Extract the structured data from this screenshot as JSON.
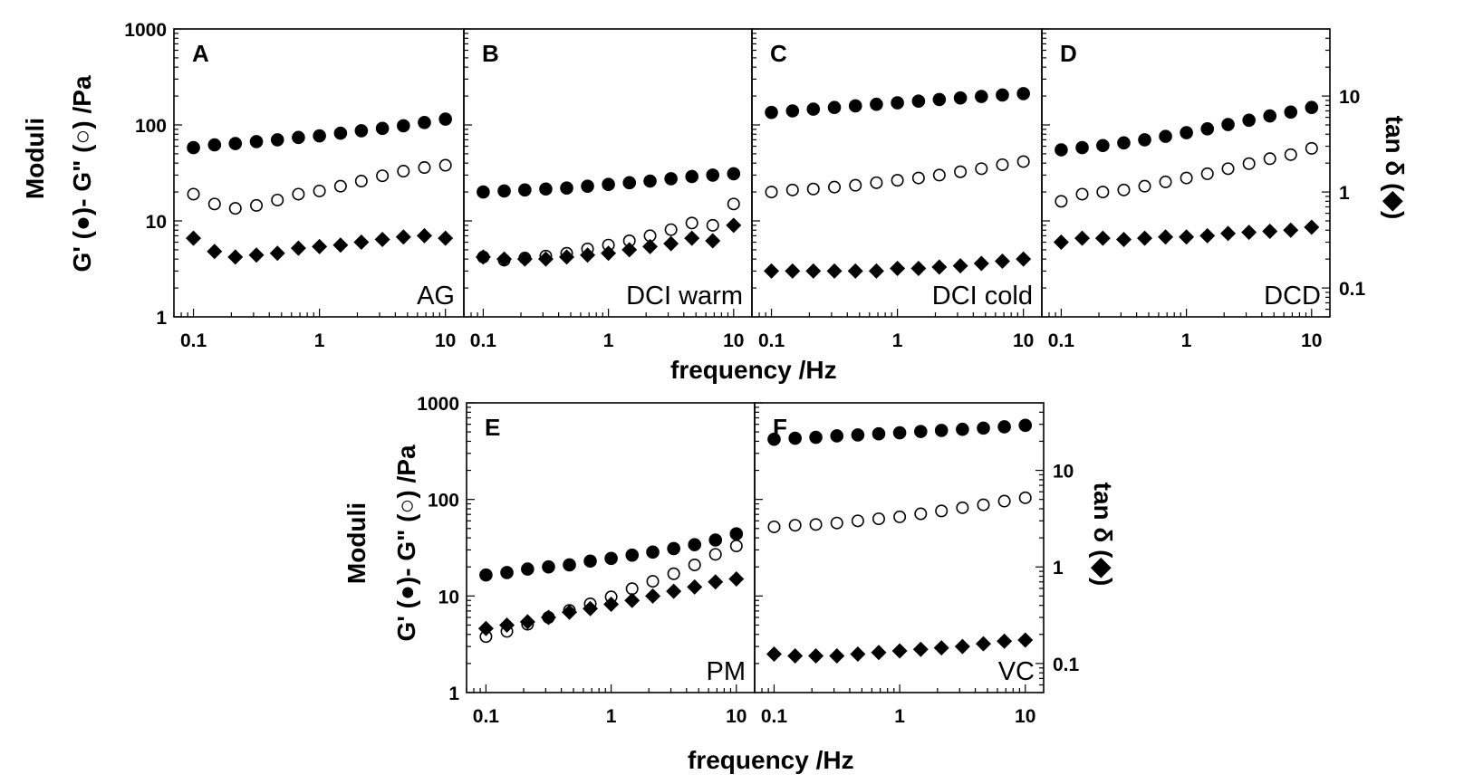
{
  "chart_data": {
    "type": "scatter",
    "y_label_line1": "Moduli",
    "y_label_line2": "G' (●)- G\" (○) /Pa",
    "right_label": "tan δ (◆)",
    "x_label": "frequency /Hz",
    "x_scale": "log",
    "xlim": [
      0.07,
      14
    ],
    "left_ylim": [
      1,
      1000
    ],
    "right_ylim": [
      0.05,
      50
    ],
    "x_ticks": [
      "0.1",
      "1",
      "10"
    ],
    "left_ticks": [
      "1",
      "10",
      "100",
      "1000"
    ],
    "right_ticks_top": [
      "0.1",
      "1",
      "10"
    ],
    "right_ticks_bottom": [
      "0.1",
      "1",
      "10"
    ],
    "frequencies": [
      0.1,
      0.147,
      0.215,
      0.316,
      0.464,
      0.681,
      1.0,
      1.47,
      2.15,
      3.16,
      4.64,
      6.81,
      10.0
    ],
    "panels": [
      {
        "id": "A",
        "sample": "AG",
        "G_prime": [
          58,
          62,
          64,
          67,
          70,
          74,
          77,
          82,
          87,
          92,
          98,
          106,
          115
        ],
        "G_double_prime": [
          19,
          15,
          13.5,
          14.5,
          16.5,
          19,
          20.5,
          23,
          26,
          29.5,
          33,
          36,
          38
        ],
        "tan_delta": [
          0.33,
          0.24,
          0.21,
          0.22,
          0.23,
          0.26,
          0.27,
          0.28,
          0.3,
          0.32,
          0.34,
          0.35,
          0.33
        ]
      },
      {
        "id": "B",
        "sample": "DCI warm",
        "G_prime": [
          20,
          20.5,
          21,
          21.5,
          22,
          23,
          24,
          25,
          26,
          27.5,
          29,
          30,
          31
        ],
        "G_double_prime": [
          4.2,
          3.9,
          4.1,
          4.3,
          4.6,
          5.1,
          5.6,
          6.2,
          7,
          8.1,
          9.5,
          9,
          15
        ],
        "tan_delta": [
          0.21,
          0.2,
          0.2,
          0.2,
          0.21,
          0.22,
          0.23,
          0.25,
          0.27,
          0.29,
          0.33,
          0.31,
          0.45
        ]
      },
      {
        "id": "C",
        "sample": "DCI cold",
        "G_prime": [
          135,
          140,
          146,
          152,
          158,
          164,
          170,
          177,
          184,
          191,
          198,
          205,
          212
        ],
        "G_double_prime": [
          20,
          21,
          21.5,
          22.5,
          23.5,
          25,
          26.5,
          28,
          30,
          32.5,
          35,
          38.5,
          41.5
        ],
        "tan_delta": [
          0.15,
          0.15,
          0.15,
          0.15,
          0.15,
          0.15,
          0.16,
          0.16,
          0.165,
          0.17,
          0.18,
          0.19,
          0.2
        ]
      },
      {
        "id": "D",
        "sample": "DCD",
        "G_prime": [
          55,
          58,
          61,
          65,
          70,
          76,
          83,
          91,
          101,
          112,
          124,
          136,
          152
        ],
        "G_double_prime": [
          16,
          19,
          20,
          21,
          23,
          25.5,
          28,
          31,
          35,
          39.5,
          44.5,
          49,
          57
        ],
        "tan_delta": [
          0.3,
          0.33,
          0.33,
          0.32,
          0.33,
          0.34,
          0.34,
          0.35,
          0.37,
          0.38,
          0.39,
          0.4,
          0.43
        ]
      },
      {
        "id": "E",
        "sample": "PM",
        "G_prime": [
          16.5,
          17.5,
          19,
          20,
          21,
          23,
          24.5,
          26.5,
          28.5,
          31,
          34,
          38,
          44
        ],
        "G_double_prime": [
          3.8,
          4.3,
          5.1,
          6,
          7.1,
          8.3,
          9.8,
          11.9,
          14.2,
          17,
          21,
          27,
          33
        ],
        "tan_delta": [
          0.23,
          0.25,
          0.27,
          0.3,
          0.34,
          0.37,
          0.41,
          0.45,
          0.5,
          0.56,
          0.62,
          0.7,
          0.75
        ]
      },
      {
        "id": "F",
        "sample": "VC",
        "G_prime": [
          420,
          430,
          440,
          455,
          465,
          478,
          490,
          505,
          518,
          532,
          548,
          565,
          585
        ],
        "G_double_prime": [
          52,
          54,
          55,
          57,
          60,
          63,
          66,
          71,
          76,
          82,
          88,
          96,
          104
        ],
        "tan_delta": [
          0.125,
          0.12,
          0.12,
          0.12,
          0.125,
          0.13,
          0.135,
          0.14,
          0.145,
          0.15,
          0.16,
          0.17,
          0.175
        ]
      }
    ]
  }
}
